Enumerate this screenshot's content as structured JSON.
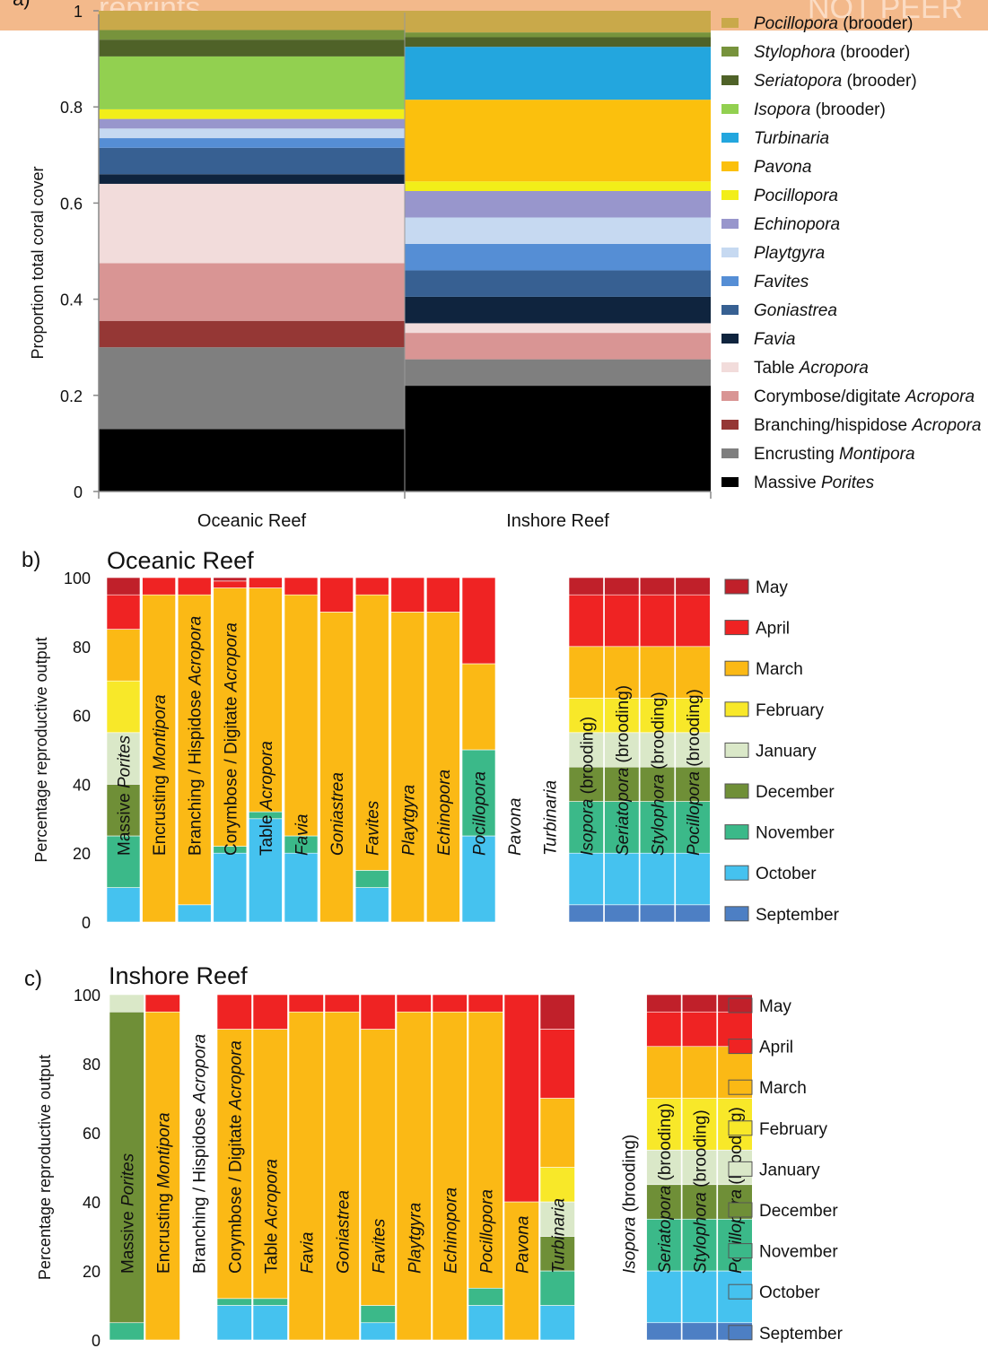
{
  "colors": {
    "Massive Porites": "#000000",
    "Encrusting Montipora": "#7f7f7f",
    "Branching/hispidose Acropora": "#953735",
    "Corymbose/digitate Acropora": "#d99594",
    "Table Acropora": "#f2dcdb",
    "Favia": "#0f243e",
    "Goniastrea": "#376092",
    "Favites": "#558ed5",
    "Playtgyra": "#c6d9f1",
    "Echinopora": "#9896cc",
    "Pocillopora": "#f2ee19",
    "Pavona": "#fbc00d",
    "Turbinaria": "#23a6de",
    "Isopora (brooder)": "#92d050",
    "Seriatopora (brooder)": "#4f6228",
    "Stylophora (brooder)": "#77933c",
    "Pocillopora (brooder)": "#c9a94a",
    "May": "#c0202a",
    "April": "#ef2323",
    "March": "#fbb915",
    "February": "#f8e829",
    "January": "#dae8c8",
    "December": "#6f8f37",
    "November": "#3bb989",
    "October": "#45c2ef",
    "September": "#4d7fc4"
  },
  "banner": {
    "left_text": "reprints",
    "right_text": "NOT PEER"
  },
  "chart_data": [
    {
      "type": "bar",
      "stacked": true,
      "panel_label": "a)",
      "ylabel": "Proportion total coral cover",
      "ylim": [
        0,
        1
      ],
      "yticks": [
        "0",
        "0.2",
        "0.4",
        "0.6",
        "0.8",
        "1"
      ],
      "categories": [
        "Oceanic Reef",
        "Inshore Reef"
      ],
      "series": [
        {
          "name": "Massive Porites",
          "legend": [
            "",
            "Massive ",
            "Porites"
          ],
          "values": [
            0.13,
            0.22
          ]
        },
        {
          "name": "Encrusting Montipora",
          "legend": [
            "",
            "Encrusting ",
            "Montipora"
          ],
          "values": [
            0.17,
            0.055
          ]
        },
        {
          "name": "Branching/hispidose Acropora",
          "legend": [
            "",
            "Branching/hispidose ",
            "Acropora"
          ],
          "values": [
            0.055,
            0
          ]
        },
        {
          "name": "Corymbose/digitate Acropora",
          "legend": [
            "",
            "Corymbose/digitate ",
            "Acropora"
          ],
          "values": [
            0.12,
            0.055
          ]
        },
        {
          "name": "Table Acropora",
          "legend": [
            "",
            "Table ",
            "Acropora"
          ],
          "values": [
            0.165,
            0.02
          ]
        },
        {
          "name": "Favia",
          "legend": [
            "Favia",
            "",
            ""
          ],
          "values": [
            0.02,
            0.055
          ]
        },
        {
          "name": "Goniastrea",
          "legend": [
            "Goniastrea",
            "",
            ""
          ],
          "values": [
            0.055,
            0.055
          ]
        },
        {
          "name": "Favites",
          "legend": [
            "Favites",
            "",
            ""
          ],
          "values": [
            0.02,
            0.055
          ]
        },
        {
          "name": "Playtgyra",
          "legend": [
            "Playtgyra",
            "",
            ""
          ],
          "values": [
            0.02,
            0.055
          ]
        },
        {
          "name": "Echinopora",
          "legend": [
            "Echinopora",
            "",
            ""
          ],
          "values": [
            0.02,
            0.055
          ]
        },
        {
          "name": "Pocillopora",
          "legend": [
            "Pocillopora",
            "",
            ""
          ],
          "values": [
            0.02,
            0.02
          ]
        },
        {
          "name": "Pavona",
          "legend": [
            "Pavona",
            "",
            ""
          ],
          "values": [
            0,
            0.17
          ]
        },
        {
          "name": "Turbinaria",
          "legend": [
            "Turbinaria",
            "",
            ""
          ],
          "values": [
            0,
            0.11
          ]
        },
        {
          "name": "Isopora (brooder)",
          "legend": [
            "Isopora",
            " (brooder)",
            ""
          ],
          "values": [
            0.11,
            0
          ]
        },
        {
          "name": "Seriatopora (brooder)",
          "legend": [
            "Seriatopora",
            " (brooder)",
            ""
          ],
          "values": [
            0.035,
            0.02
          ]
        },
        {
          "name": "Stylophora (brooder)",
          "legend": [
            "Stylophora",
            " (brooder)",
            ""
          ],
          "values": [
            0.02,
            0.01
          ]
        },
        {
          "name": "Pocillopora (brooder)",
          "legend": [
            "Pocillopora",
            " (brooder)",
            ""
          ],
          "values": [
            0.04,
            0.045
          ]
        }
      ]
    },
    {
      "type": "bar",
      "stacked": true,
      "panel_label": "b)",
      "title": "Oceanic Reef",
      "ylabel": "Percentage reproductive output",
      "ylim": [
        0,
        100
      ],
      "yticks": [
        "0",
        "20",
        "40",
        "60",
        "80",
        "100"
      ],
      "months": [
        "September",
        "October",
        "November",
        "December",
        "January",
        "February",
        "March",
        "April",
        "May"
      ],
      "bars": [
        {
          "label": [
            "Massive ",
            "Porites"
          ],
          "values": [
            0,
            10,
            15,
            15,
            15,
            15,
            15,
            10,
            5
          ]
        },
        {
          "label": [
            "Encrusting ",
            "Montipora"
          ],
          "values": [
            0,
            0,
            0,
            0,
            0,
            0,
            95,
            5,
            0
          ]
        },
        {
          "label": [
            "Branching / Hispidose ",
            "Acropora"
          ],
          "values": [
            0,
            5,
            0,
            0,
            0,
            0,
            90,
            5,
            0
          ]
        },
        {
          "label": [
            "Corymbose / Digitate ",
            "Acropora"
          ],
          "values": [
            0,
            20,
            2,
            0,
            0,
            0,
            75,
            2,
            1
          ]
        },
        {
          "label": [
            "Table ",
            "Acropora"
          ],
          "values": [
            0,
            30,
            2,
            0,
            0,
            0,
            65,
            3,
            0
          ]
        },
        {
          "label": [
            "",
            "Favia"
          ],
          "values": [
            0,
            20,
            5,
            0,
            0,
            0,
            70,
            5,
            0
          ]
        },
        {
          "label": [
            "",
            "Goniastrea"
          ],
          "values": [
            0,
            0,
            0,
            0,
            0,
            0,
            90,
            10,
            0
          ]
        },
        {
          "label": [
            "",
            "Favites"
          ],
          "values": [
            0,
            10,
            5,
            0,
            0,
            0,
            80,
            5,
            0
          ]
        },
        {
          "label": [
            "",
            "Playtgyra"
          ],
          "values": [
            0,
            0,
            0,
            0,
            0,
            0,
            90,
            10,
            0
          ]
        },
        {
          "label": [
            "",
            "Echinopora"
          ],
          "values": [
            0,
            0,
            0,
            0,
            0,
            0,
            90,
            10,
            0
          ]
        },
        {
          "label": [
            "",
            "Pocillopora"
          ],
          "values": [
            0,
            25,
            25,
            0,
            0,
            0,
            25,
            25,
            0
          ]
        },
        {
          "label": [
            "",
            "Pavona"
          ],
          "values": [],
          "italic_all": true
        },
        {
          "label": [
            "",
            "Turbinaria"
          ],
          "values": [],
          "italic_all": true
        }
      ],
      "brooders": [
        {
          "label": [
            "Isopora",
            " (brooding)"
          ],
          "values": [
            5,
            15,
            15,
            10,
            10,
            10,
            15,
            15,
            5
          ]
        },
        {
          "label": [
            "Seriatopora",
            " (brooding)"
          ],
          "values": [
            5,
            15,
            15,
            10,
            10,
            10,
            15,
            15,
            5
          ]
        },
        {
          "label": [
            "Stylophora",
            " (brooding)"
          ],
          "values": [
            5,
            15,
            15,
            10,
            10,
            10,
            15,
            15,
            5
          ]
        },
        {
          "label": [
            "Pocillopora",
            " (brooding)"
          ],
          "values": [
            5,
            15,
            15,
            10,
            10,
            10,
            15,
            15,
            5
          ]
        }
      ],
      "legend": [
        "May",
        "April",
        "March",
        "February",
        "January",
        "December",
        "November",
        "October",
        "September"
      ]
    },
    {
      "type": "bar",
      "stacked": true,
      "panel_label": "c)",
      "title": "Inshore Reef",
      "ylabel": "Percentage reproductive output",
      "ylim": [
        0,
        100
      ],
      "yticks": [
        "0",
        "20",
        "40",
        "60",
        "80",
        "100"
      ],
      "months": [
        "September",
        "October",
        "November",
        "December",
        "January",
        "February",
        "March",
        "April",
        "May"
      ],
      "bars": [
        {
          "label": [
            "Massive ",
            "Porites"
          ],
          "values": [
            0,
            0,
            5,
            90,
            5,
            0,
            0,
            0,
            0
          ]
        },
        {
          "label": [
            "Encrusting ",
            "Montipora"
          ],
          "values": [
            0,
            0,
            0,
            0,
            0,
            0,
            95,
            5,
            0
          ]
        },
        {
          "label": [
            "Branching / Hispidose ",
            "Acropora"
          ],
          "values": [],
          "gap": true
        },
        {
          "label": [
            "Corymbose / Digitate ",
            "Acropora"
          ],
          "values": [
            0,
            10,
            2,
            0,
            0,
            0,
            78,
            10,
            0
          ]
        },
        {
          "label": [
            "Table ",
            "Acropora"
          ],
          "values": [
            0,
            10,
            2,
            0,
            0,
            0,
            78,
            10,
            0
          ]
        },
        {
          "label": [
            "",
            "Favia"
          ],
          "values": [
            0,
            0,
            0,
            0,
            0,
            0,
            95,
            5,
            0
          ]
        },
        {
          "label": [
            "",
            "Goniastrea"
          ],
          "values": [
            0,
            0,
            0,
            0,
            0,
            0,
            95,
            5,
            0
          ]
        },
        {
          "label": [
            "",
            "Favites"
          ],
          "values": [
            0,
            5,
            5,
            0,
            0,
            0,
            80,
            10,
            0
          ]
        },
        {
          "label": [
            "",
            "Playtgyra"
          ],
          "values": [
            0,
            0,
            0,
            0,
            0,
            0,
            95,
            5,
            0
          ]
        },
        {
          "label": [
            "",
            "Echinopora"
          ],
          "values": [
            0,
            0,
            0,
            0,
            0,
            0,
            95,
            5,
            0
          ]
        },
        {
          "label": [
            "",
            "Pocillopora"
          ],
          "values": [
            0,
            10,
            5,
            0,
            0,
            0,
            80,
            5,
            0
          ]
        },
        {
          "label": [
            "",
            "Pavona"
          ],
          "values": [
            0,
            0,
            0,
            0,
            0,
            0,
            40,
            60,
            0
          ]
        },
        {
          "label": [
            "",
            "Turbinaria"
          ],
          "values": [
            0,
            10,
            10,
            10,
            10,
            10,
            20,
            20,
            10
          ]
        }
      ],
      "brooders": [
        {
          "label": [
            "Isopora",
            " (brooding)"
          ],
          "values": [],
          "gap": true
        },
        {
          "label": [
            "Seriatopora",
            " (brooding)"
          ],
          "values": [
            5,
            15,
            15,
            10,
            10,
            15,
            15,
            10,
            5
          ]
        },
        {
          "label": [
            "Stylophora",
            " (brooding)"
          ],
          "values": [
            5,
            15,
            15,
            10,
            10,
            15,
            15,
            10,
            5
          ]
        },
        {
          "label": [
            "Pocillopora",
            " (brooding)"
          ],
          "values": [
            5,
            15,
            15,
            10,
            10,
            15,
            15,
            10,
            5
          ]
        }
      ],
      "legend": [
        "May",
        "April",
        "March",
        "February",
        "January",
        "December",
        "November",
        "October",
        "September"
      ]
    }
  ]
}
